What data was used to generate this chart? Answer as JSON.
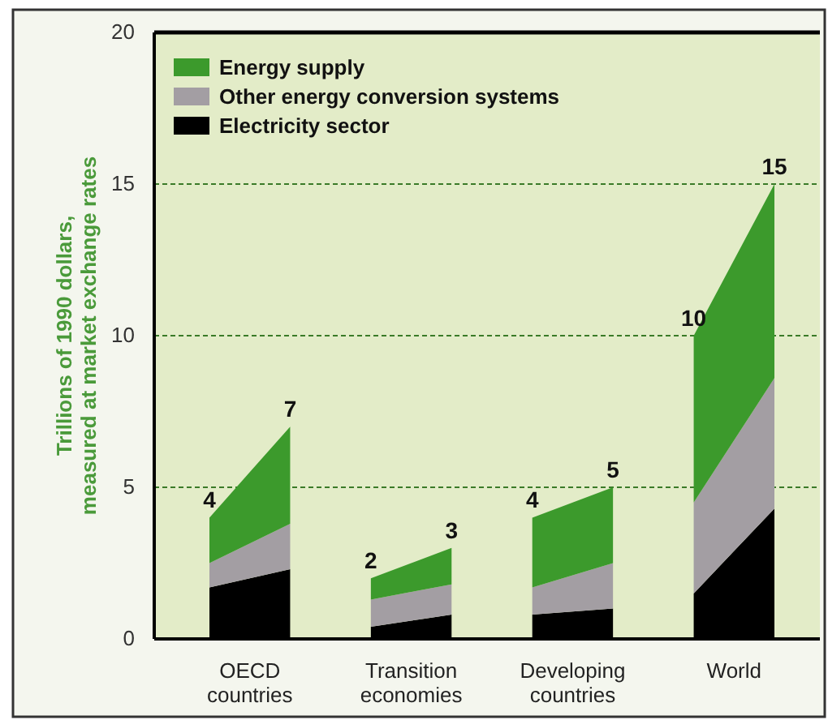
{
  "chart_data": {
    "type": "area",
    "stacked": true,
    "ylabel": "Trillions of 1990 dollars, measured at market exchange rates",
    "categories": [
      null,
      "OECD countries",
      null,
      null,
      null,
      "Transition economies",
      null,
      null,
      null,
      "Developing countries",
      null,
      null,
      null,
      "World",
      null
    ],
    "ylim": [
      0,
      20
    ],
    "yticks": [
      0,
      5,
      10,
      15,
      20
    ],
    "grid": "y",
    "legend": "top left",
    "series": [
      {
        "name": "Electricity sector",
        "color": "#000000",
        "values": [
          1.7,
          2.0,
          2.3,
          null,
          0.4,
          0.6,
          0.8,
          null,
          0.8,
          0.9,
          1.0,
          null,
          1.5,
          2.9,
          4.3
        ]
      },
      {
        "name": "Other energy conversion systems",
        "color": "#a39ea3",
        "values": [
          0.8,
          1.15,
          1.5,
          null,
          0.9,
          0.95,
          1.0,
          null,
          0.9,
          1.2,
          1.5,
          null,
          3.0,
          3.65,
          4.3
        ]
      },
      {
        "name": "Energy supply",
        "color": "#3c9a2c",
        "values": [
          1.5,
          2.35,
          3.2,
          null,
          0.7,
          0.95,
          1.2,
          null,
          2.3,
          2.4,
          2.5,
          null,
          5.5,
          5.95,
          6.4
        ]
      }
    ],
    "totals": [
      "4",
      null,
      "7",
      null,
      "2",
      null,
      "3",
      null,
      "4",
      null,
      "5",
      null,
      "10",
      null,
      "15"
    ]
  }
}
